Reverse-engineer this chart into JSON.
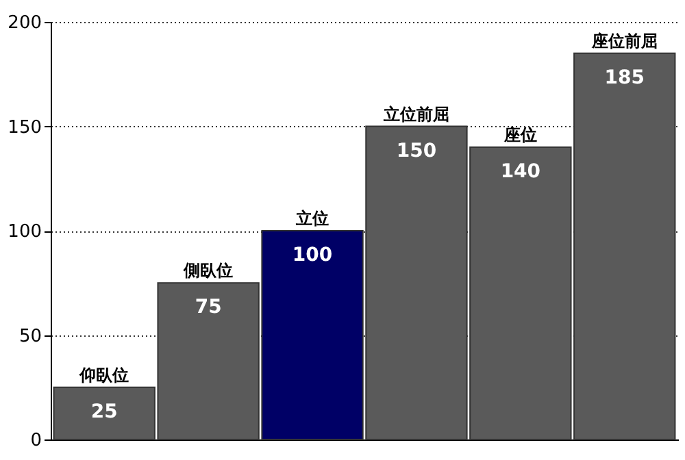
{
  "chart_data": {
    "type": "bar",
    "categories": [
      "仰臥位",
      "側臥位",
      "立位",
      "立位前屈",
      "座位",
      "座位前屈"
    ],
    "values": [
      25,
      75,
      100,
      150,
      140,
      185
    ],
    "colors": [
      "#5a5a5a",
      "#5a5a5a",
      "#000066",
      "#5a5a5a",
      "#5a5a5a",
      "#5a5a5a"
    ],
    "ylim": [
      0,
      200
    ],
    "yticks": [
      0,
      50,
      100,
      150,
      200
    ],
    "grid": "y",
    "data_labels": true
  }
}
